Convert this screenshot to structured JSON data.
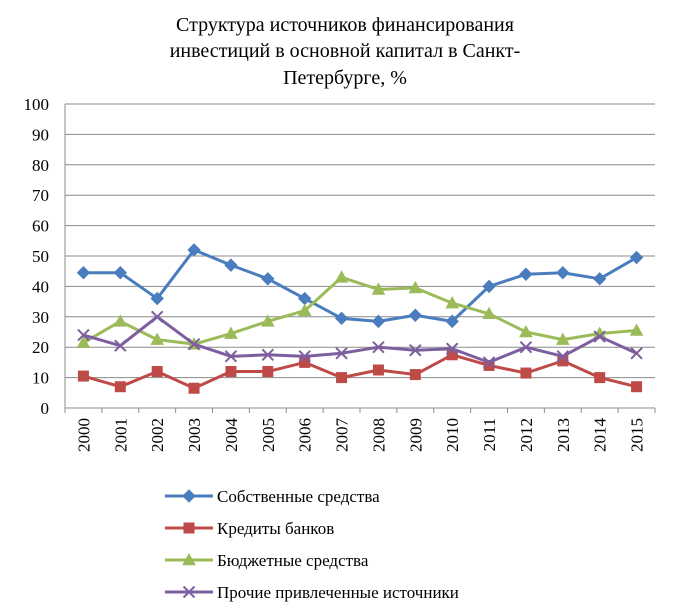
{
  "chart_data": {
    "type": "line",
    "title": "Структура источников финансирования инвестиций в основной капитал в Санкт-Петербурге, %",
    "title_lines": [
      "Структура источников финансирования",
      "инвестиций в основной капитал в Санкт-",
      "Петербурге, %"
    ],
    "categories": [
      "2000",
      "2001",
      "2002",
      "2003",
      "2004",
      "2005",
      "2006",
      "2007",
      "2008",
      "2009",
      "2010",
      "2011",
      "2012",
      "2013",
      "2014",
      "2015"
    ],
    "xlabel": "",
    "ylabel": "",
    "ylim": [
      0,
      100
    ],
    "yticks": [
      "0",
      "10",
      "20",
      "30",
      "40",
      "50",
      "60",
      "70",
      "80",
      "90",
      "100"
    ],
    "grid": true,
    "legend_position": "bottom",
    "series": [
      {
        "name": "Собственные средства",
        "color": "#4a7dbd",
        "marker": "diamond",
        "values": [
          44.5,
          44.5,
          36,
          52,
          47,
          42.5,
          36,
          29.5,
          28.5,
          30.5,
          28.5,
          40,
          44,
          44.5,
          42.5,
          49.5
        ]
      },
      {
        "name": "Кредиты банков",
        "color": "#be4b48",
        "marker": "square",
        "values": [
          10.5,
          7,
          12,
          6.5,
          12,
          12,
          15,
          10,
          12.5,
          11,
          17.5,
          14,
          11.5,
          15.5,
          10,
          7
        ]
      },
      {
        "name": "Бюджетные средства",
        "color": "#9bbb59",
        "marker": "triangle",
        "values": [
          21.5,
          28.5,
          22.5,
          21,
          24.5,
          28.5,
          32,
          43,
          39,
          39.5,
          34.5,
          31,
          25,
          22.5,
          24.5,
          25.5
        ]
      },
      {
        "name": "Прочие привлеченные источники",
        "color": "#7d5f9f",
        "marker": "x",
        "values": [
          24,
          20.5,
          30,
          21,
          17,
          17.5,
          17,
          18,
          20,
          19,
          19.5,
          15,
          20,
          17,
          23.5,
          18
        ]
      }
    ]
  }
}
